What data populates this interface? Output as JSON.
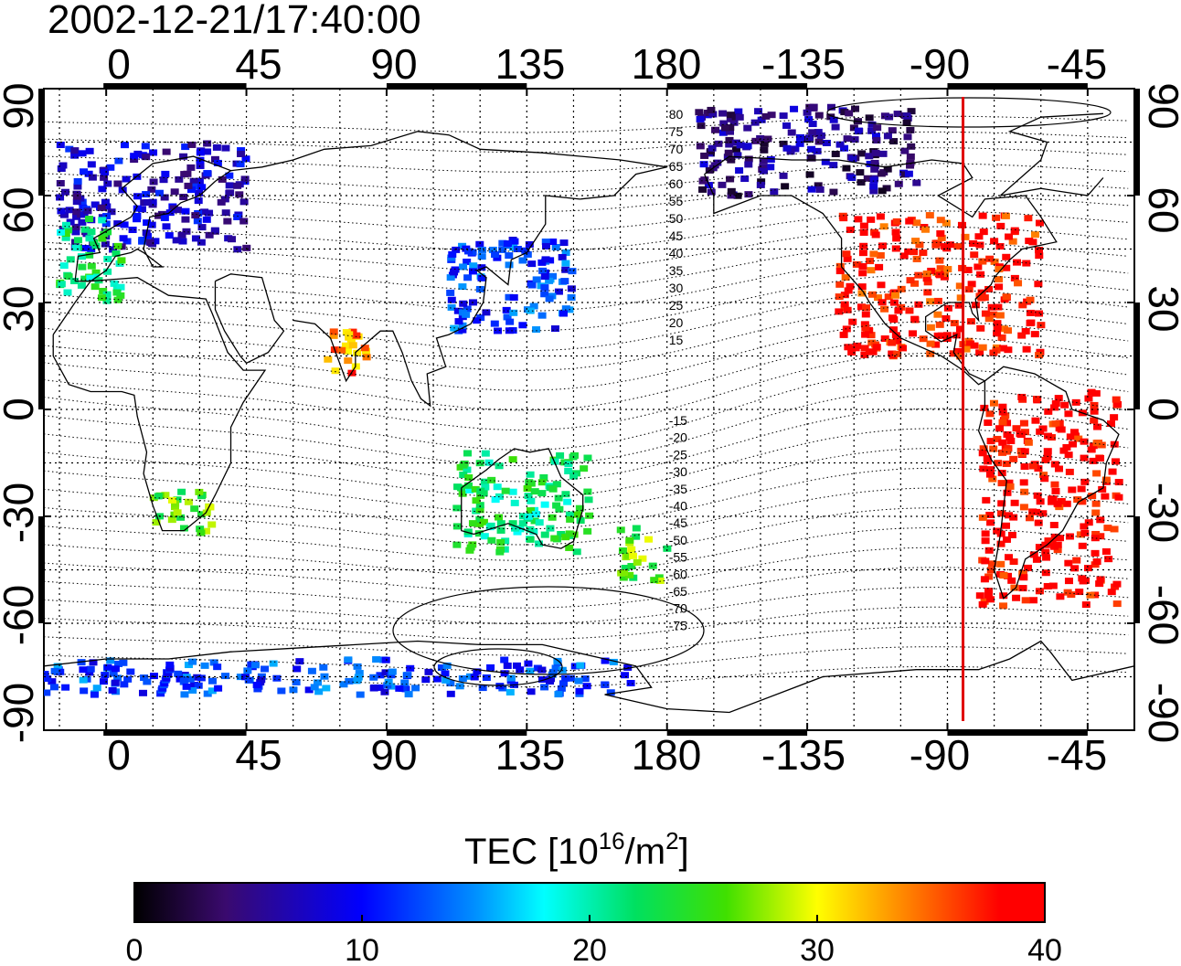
{
  "title": "2002-12-21/17:40:00",
  "map": {
    "x_ticks_top": [
      "0",
      "45",
      "90",
      "135",
      "180",
      "-135",
      "-90",
      "-45"
    ],
    "x_ticks_bottom": [
      "0",
      "45",
      "90",
      "135",
      "180",
      "-135",
      "-90",
      "-45"
    ],
    "y_ticks_left": [
      "90",
      "60",
      "30",
      "0",
      "-30",
      "-60",
      "-90"
    ],
    "y_ticks_right": [
      "90",
      "60",
      "30",
      "0",
      "-30",
      "-60",
      "-90"
    ],
    "magnetic_lat_labels_north": [
      "80",
      "75",
      "70",
      "65",
      "60",
      "55",
      "50",
      "45",
      "40",
      "35",
      "30",
      "25",
      "20",
      "15"
    ],
    "magnetic_lat_labels_south": [
      "-15",
      "-20",
      "-25",
      "-30",
      "-35",
      "-40",
      "-45",
      "-50",
      "-55",
      "-60",
      "-65",
      "-70",
      "-75"
    ],
    "noon_meridian_lon": -85,
    "noon_meridian_color": "#e00000"
  },
  "colorbar": {
    "title_prefix": "TEC  [10",
    "title_exp1": "16",
    "title_mid": "/m",
    "title_exp2": "2",
    "title_suffix": "]",
    "ticks": [
      "0",
      "10",
      "20",
      "30",
      "40"
    ],
    "min": 0,
    "max": 40
  },
  "chart_data": {
    "type": "heatmap",
    "title": "2002-12-21/17:40:00",
    "xlabel": "",
    "ylabel": "",
    "xlim": [
      -20,
      330
    ],
    "ylim": [
      -90,
      90
    ],
    "value_label": "TEC [10^16/m^2]",
    "value_range": [
      0,
      40
    ],
    "regions": [
      {
        "name": "",
        "lon": [
          -15,
          45
        ],
        "lat": [
          45,
          75
        ],
        "tec": 8
      },
      {
        "name": "",
        "lon": [
          -15,
          5
        ],
        "lat": [
          30,
          55
        ],
        "tec": 22
      },
      {
        "name": "",
        "lon": [
          110,
          150
        ],
        "lat": [
          22,
          48
        ],
        "tec": 12
      },
      {
        "name": "",
        "lon": [
          -125,
          -60
        ],
        "lat": [
          15,
          55
        ],
        "tec": 38
      },
      {
        "name": "",
        "lon": [
          -170,
          -100
        ],
        "lat": [
          60,
          85
        ],
        "tec": 5
      },
      {
        "name": "",
        "lon": [
          -80,
          -35
        ],
        "lat": [
          -55,
          5
        ],
        "tec": 39
      },
      {
        "name": "",
        "lon": [
          112,
          155
        ],
        "lat": [
          -40,
          -12
        ],
        "tec": 22
      },
      {
        "name": "",
        "lon": [
          165,
          180
        ],
        "lat": [
          -48,
          -33
        ],
        "tec": 26
      },
      {
        "name": "",
        "lon": [
          15,
          35
        ],
        "lat": [
          -35,
          -22
        ],
        "tec": 26
      },
      {
        "name": "",
        "lon": [
          70,
          85
        ],
        "lat": [
          10,
          22
        ],
        "tec": 34
      },
      {
        "name": "",
        "lon": [
          -20,
          170
        ],
        "lat": [
          -80,
          -70
        ],
        "tec": 12
      }
    ]
  }
}
